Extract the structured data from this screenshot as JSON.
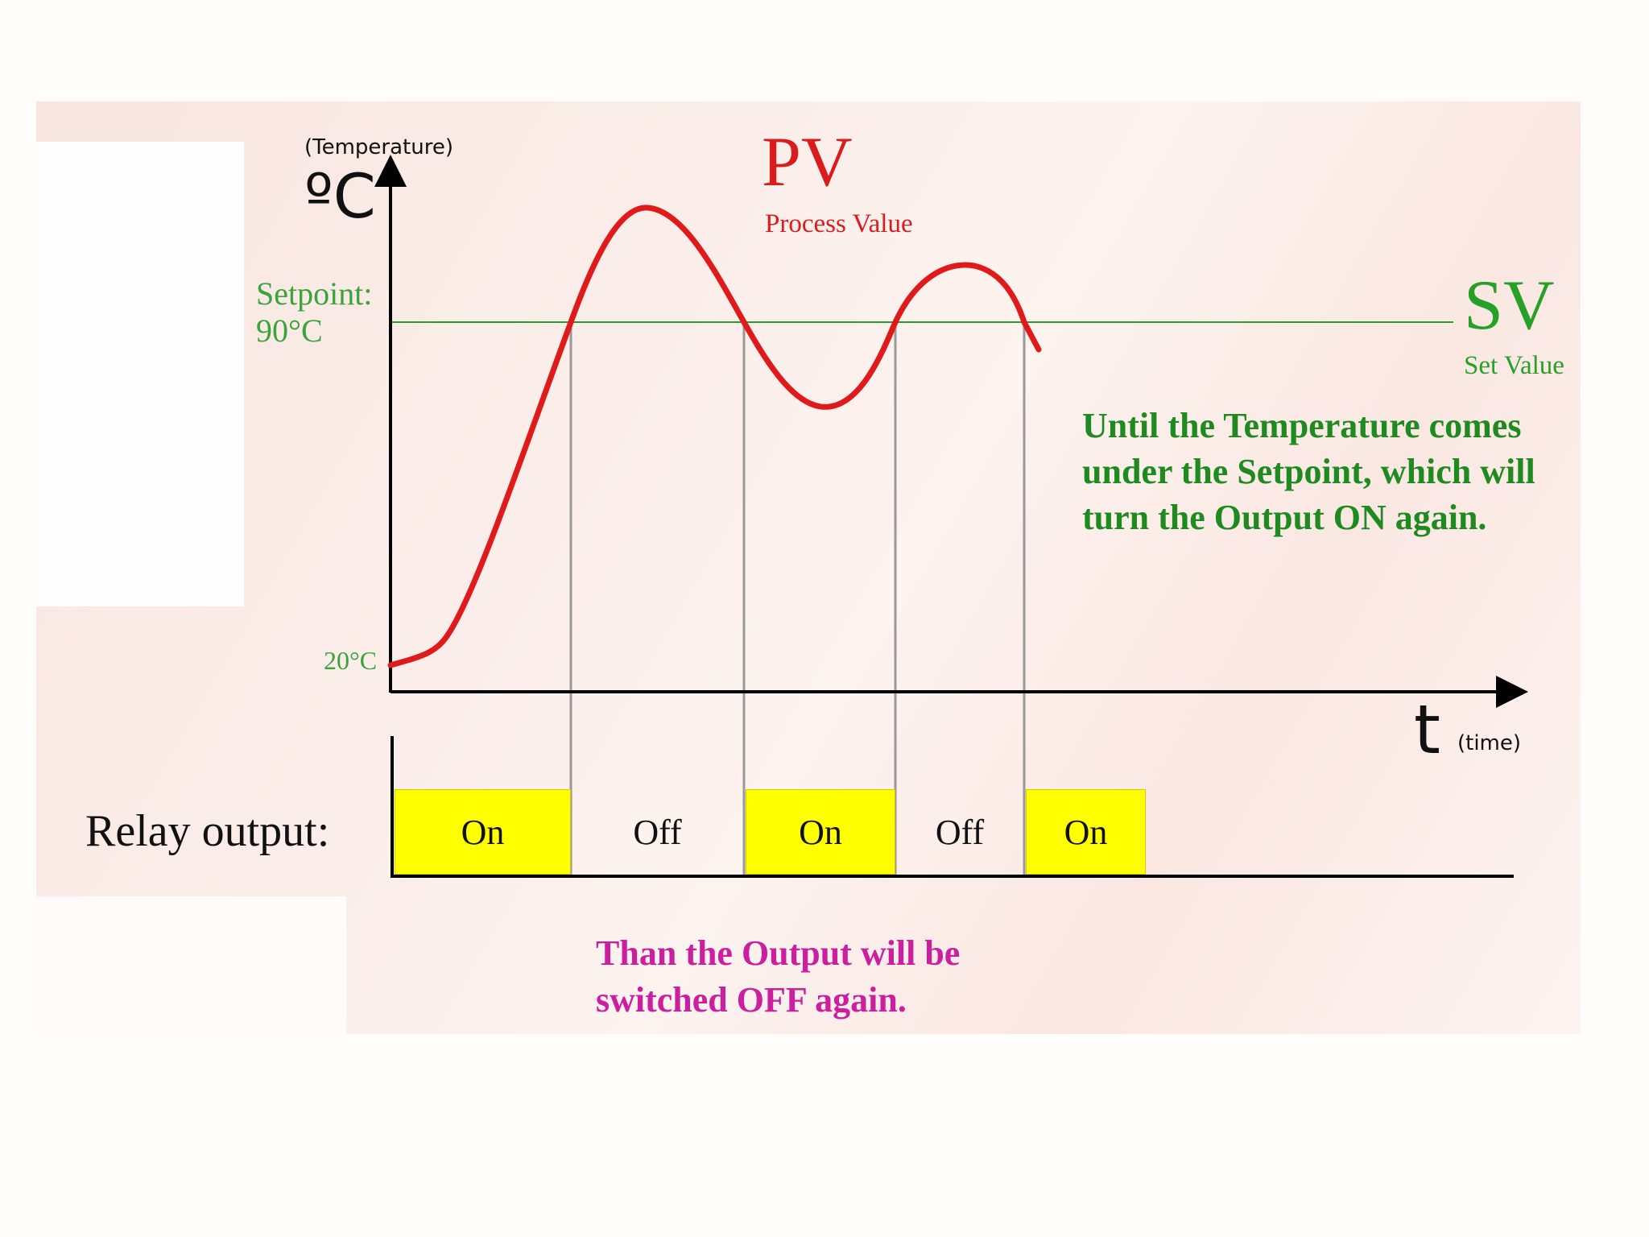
{
  "axes": {
    "y_caption": "(Temperature)",
    "y_unit": "ºC",
    "x_symbol": "t",
    "x_caption": "(time)"
  },
  "setpoint": {
    "label": "Setpoint:",
    "value_label": "90°C",
    "value": 90
  },
  "start_label": "20°C",
  "pv": {
    "title": "PV",
    "subtitle": "Process Value",
    "color": "#e0191b"
  },
  "sv": {
    "title": "SV",
    "subtitle": "Set Value",
    "color": "#22a022"
  },
  "relay": {
    "label": "Relay output:",
    "states": [
      {
        "label": "On",
        "on": true
      },
      {
        "label": "Off",
        "on": false
      },
      {
        "label": "On",
        "on": true
      },
      {
        "label": "Off",
        "on": false
      },
      {
        "label": "On",
        "on": true
      }
    ],
    "on_color": "#ffff00"
  },
  "notes": {
    "under_setpoint": "Until the Temperature comes under the Setpoint, which will turn the Output ON again.",
    "switch_off": "Than the Output will be switched OFF again."
  }
}
